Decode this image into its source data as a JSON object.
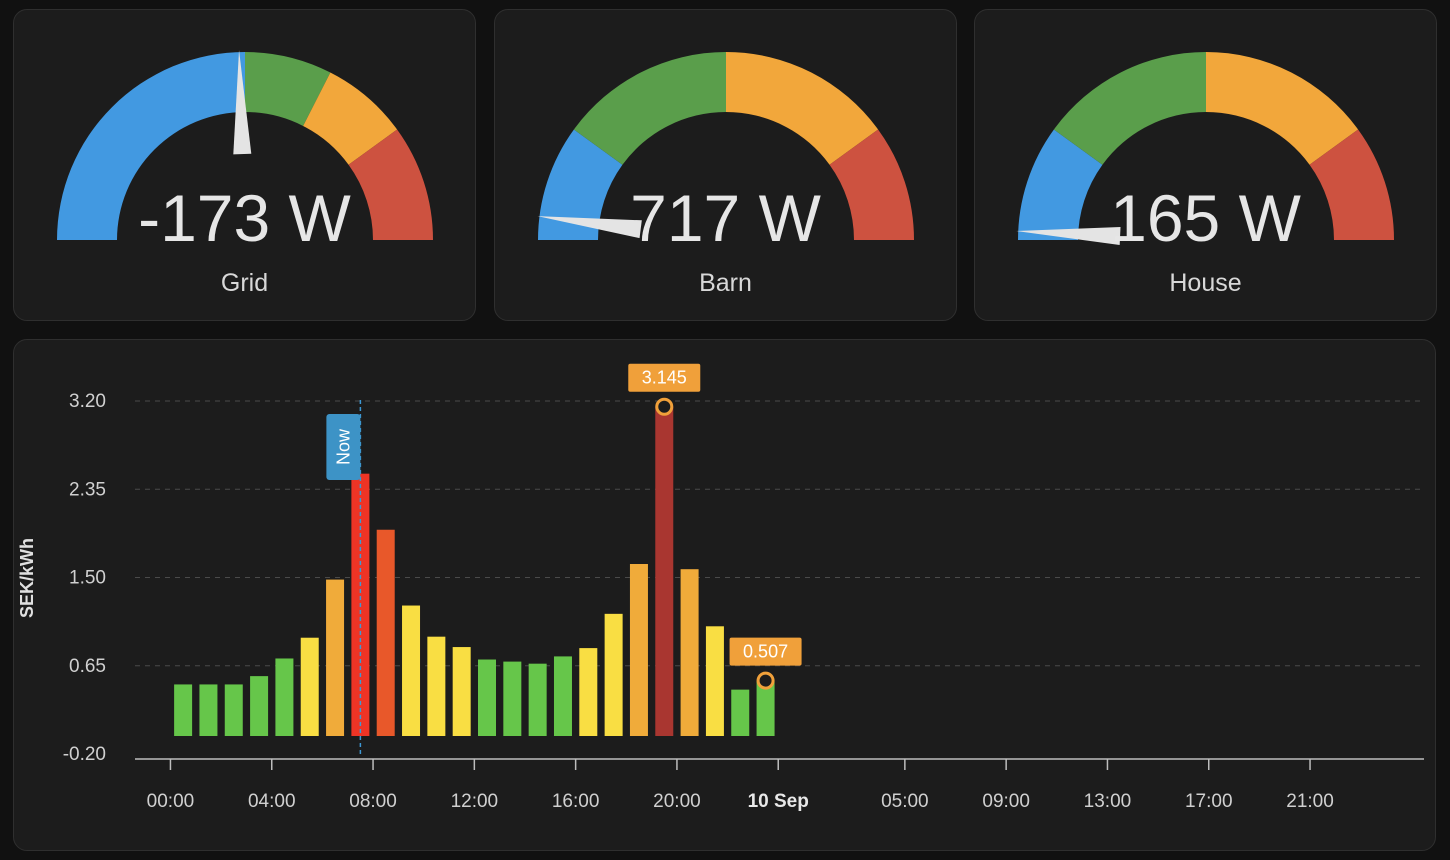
{
  "gauges": [
    {
      "label": "Grid",
      "value_text": "-173 W",
      "needle_fraction": 0.49
    },
    {
      "label": "Barn",
      "value_text": "717 W",
      "needle_fraction": 0.04
    },
    {
      "label": "House",
      "value_text": "165 W",
      "needle_fraction": 0.015
    }
  ],
  "gauge_segments": {
    "Grid": [
      {
        "to": 0.5,
        "color": "#4299e1"
      },
      {
        "to": 0.65,
        "color": "#5a9e4b"
      },
      {
        "to": 0.8,
        "color": "#f2a73b"
      },
      {
        "to": 1.0,
        "color": "#cd5240"
      }
    ],
    "Barn": [
      {
        "to": 0.2,
        "color": "#4299e1"
      },
      {
        "to": 0.5,
        "color": "#5a9e4b"
      },
      {
        "to": 0.8,
        "color": "#f2a73b"
      },
      {
        "to": 1.0,
        "color": "#cd5240"
      }
    ],
    "House": [
      {
        "to": 0.2,
        "color": "#4299e1"
      },
      {
        "to": 0.5,
        "color": "#5a9e4b"
      },
      {
        "to": 0.8,
        "color": "#f2a73b"
      },
      {
        "to": 1.0,
        "color": "#cd5240"
      }
    ]
  },
  "chart_data": {
    "type": "bar",
    "ylabel": "SEK/kWh",
    "ylim": [
      -0.2,
      3.2
    ],
    "yticks": [
      {
        "value": 3.2,
        "label": "3.20"
      },
      {
        "value": 2.35,
        "label": "2.35"
      },
      {
        "value": 1.5,
        "label": "1.50"
      },
      {
        "value": 0.65,
        "label": "0.65"
      },
      {
        "value": -0.2,
        "label": "-0.20"
      }
    ],
    "xticks": [
      {
        "hour": 0,
        "label": "00:00",
        "bold": false
      },
      {
        "hour": 4,
        "label": "04:00",
        "bold": false
      },
      {
        "hour": 8,
        "label": "08:00",
        "bold": false
      },
      {
        "hour": 12,
        "label": "12:00",
        "bold": false
      },
      {
        "hour": 16,
        "label": "16:00",
        "bold": false
      },
      {
        "hour": 20,
        "label": "20:00",
        "bold": false
      },
      {
        "hour": 24,
        "label": "10 Sep",
        "bold": true
      },
      {
        "hour": 29,
        "label": "05:00",
        "bold": false
      },
      {
        "hour": 33,
        "label": "09:00",
        "bold": false
      },
      {
        "hour": 37,
        "label": "13:00",
        "bold": false
      },
      {
        "hour": 41,
        "label": "17:00",
        "bold": false
      },
      {
        "hour": 45,
        "label": "21:00",
        "bold": false
      }
    ],
    "xrange_hours": [
      -1.4,
      49.5
    ],
    "values": [
      0.47,
      0.47,
      0.47,
      0.55,
      0.72,
      0.92,
      1.48,
      2.5,
      1.96,
      1.23,
      0.93,
      0.83,
      0.71,
      0.69,
      0.67,
      0.74,
      0.82,
      1.15,
      1.63,
      3.145,
      1.58,
      1.03,
      0.42,
      0.507
    ],
    "colors": [
      "#66c64a",
      "#66c64a",
      "#66c64a",
      "#66c64a",
      "#66c64a",
      "#f9de43",
      "#f0ab3a",
      "#ee3425",
      "#e8582a",
      "#f9de43",
      "#f9de43",
      "#f9de43",
      "#66c64a",
      "#66c64a",
      "#66c64a",
      "#66c64a",
      "#f9de43",
      "#f9de43",
      "#f0ab3a",
      "#a93630",
      "#f0ab3a",
      "#f9de43",
      "#66c64a",
      "#66c64a"
    ],
    "now_hour": 7.5,
    "now_label": "Now",
    "annotations": [
      {
        "index": 19,
        "value": 3.145,
        "label": "3.145"
      },
      {
        "index": 23,
        "value": 0.507,
        "label": "0.507"
      }
    ]
  }
}
